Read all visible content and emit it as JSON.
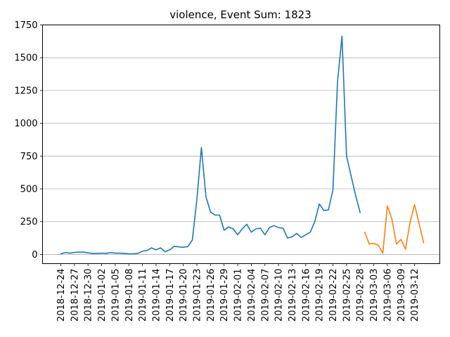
{
  "chart_data": {
    "type": "line",
    "title": "violence, Event Sum: 1823",
    "xlabel": "",
    "ylabel": "",
    "ylim": [
      -70,
      1750
    ],
    "y_ticks": [
      0,
      250,
      500,
      750,
      1000,
      1250,
      1500,
      1750
    ],
    "x_start_date": "2018-12-24",
    "x_tick_labels": [
      "2018-12-24",
      "2018-12-27",
      "2018-12-30",
      "2019-01-02",
      "2019-01-05",
      "2019-01-08",
      "2019-01-11",
      "2019-01-14",
      "2019-01-17",
      "2019-01-20",
      "2019-01-23",
      "2019-01-26",
      "2019-01-29",
      "2019-02-01",
      "2019-02-04",
      "2019-02-07",
      "2019-02-10",
      "2019-02-13",
      "2019-02-16",
      "2019-02-19",
      "2019-02-22",
      "2019-02-25",
      "2019-02-28",
      "2019-03-03",
      "2019-03-06",
      "2019-03-09",
      "2019-03-12"
    ],
    "grid": "y",
    "series": [
      {
        "color": "#1f77b4",
        "x": [
          "2018-12-24",
          "2018-12-25",
          "2018-12-26",
          "2018-12-27",
          "2018-12-28",
          "2018-12-29",
          "2018-12-30",
          "2018-12-31",
          "2019-01-01",
          "2019-01-02",
          "2019-01-03",
          "2019-01-04",
          "2019-01-05",
          "2019-01-06",
          "2019-01-07",
          "2019-01-08",
          "2019-01-09",
          "2019-01-10",
          "2019-01-11",
          "2019-01-12",
          "2019-01-13",
          "2019-01-14",
          "2019-01-15",
          "2019-01-16",
          "2019-01-17",
          "2019-01-18",
          "2019-01-19",
          "2019-01-20",
          "2019-01-21",
          "2019-01-22",
          "2019-01-23",
          "2019-01-24",
          "2019-01-25",
          "2019-01-26",
          "2019-01-27",
          "2019-01-28",
          "2019-01-29",
          "2019-01-30",
          "2019-01-31",
          "2019-02-01",
          "2019-02-02",
          "2019-02-03",
          "2019-02-04",
          "2019-02-05",
          "2019-02-06",
          "2019-02-07",
          "2019-02-08",
          "2019-02-09",
          "2019-02-10",
          "2019-02-11",
          "2019-02-12",
          "2019-02-13",
          "2019-02-14",
          "2019-02-15",
          "2019-02-16",
          "2019-02-17",
          "2019-02-18",
          "2019-02-19",
          "2019-02-20",
          "2019-02-21",
          "2019-02-22",
          "2019-02-23",
          "2019-02-24",
          "2019-02-25",
          "2019-02-26",
          "2019-02-27",
          "2019-02-28"
        ],
        "values": [
          5,
          15,
          10,
          15,
          18,
          18,
          12,
          8,
          8,
          10,
          8,
          15,
          10,
          10,
          8,
          5,
          5,
          8,
          25,
          30,
          50,
          35,
          50,
          20,
          35,
          62,
          58,
          55,
          60,
          110,
          420,
          815,
          440,
          325,
          300,
          300,
          185,
          210,
          195,
          150,
          195,
          230,
          170,
          195,
          200,
          150,
          205,
          220,
          205,
          200,
          125,
          135,
          160,
          130,
          150,
          170,
          250,
          385,
          335,
          340,
          490,
          1310,
          1665,
          750,
          600,
          450,
          320
        ]
      },
      {
        "color": "#ff7f0e",
        "x": [
          "2019-03-01",
          "2019-03-02",
          "2019-03-03",
          "2019-03-04",
          "2019-03-05",
          "2019-03-06",
          "2019-03-07",
          "2019-03-08",
          "2019-03-09",
          "2019-03-10",
          "2019-03-11",
          "2019-03-12",
          "2019-03-13",
          "2019-03-14"
        ],
        "values": [
          170,
          80,
          85,
          70,
          10,
          370,
          270,
          80,
          115,
          40,
          245,
          380,
          235,
          90
        ]
      }
    ]
  }
}
